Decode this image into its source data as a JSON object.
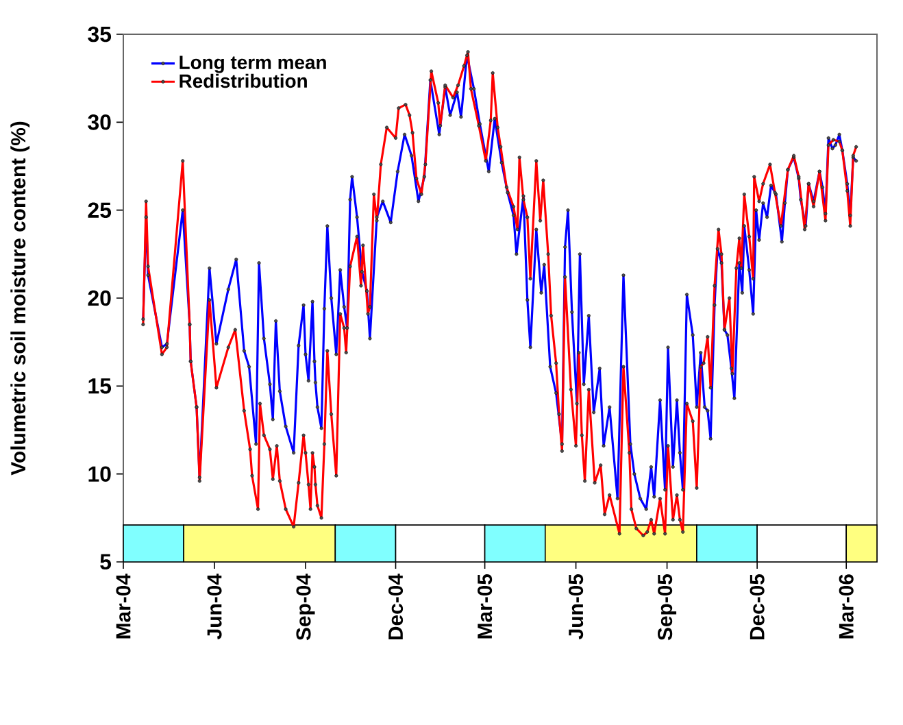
{
  "chart_data": {
    "type": "line",
    "ylabel": "Volumetric soil moisture content (%)",
    "xlim": [
      "2004-03-01",
      "2006-04-01"
    ],
    "xticks": [
      {
        "value": "2004-03-01",
        "label": "Mar-04"
      },
      {
        "value": "2004-06-01",
        "label": "Jun-04"
      },
      {
        "value": "2004-09-01",
        "label": "Sep-04"
      },
      {
        "value": "2004-12-01",
        "label": "Dec-04"
      },
      {
        "value": "2005-03-01",
        "label": "Mar-05"
      },
      {
        "value": "2005-06-01",
        "label": "Jun-05"
      },
      {
        "value": "2005-09-01",
        "label": "Sep-05"
      },
      {
        "value": "2005-12-01",
        "label": "Dec-05"
      },
      {
        "value": "2006-03-01",
        "label": "Mar-06"
      }
    ],
    "ylim": [
      5,
      35
    ],
    "yticks": [
      5,
      10,
      15,
      20,
      25,
      30,
      35
    ],
    "legend": "top left",
    "marker": "circle",
    "line_style": "solid",
    "bands": [
      {
        "axis": "x",
        "from": "2004-03-01",
        "to": "2004-05-01",
        "color": "#80ffff"
      },
      {
        "axis": "x",
        "from": "2004-05-01",
        "to": "2004-10-01",
        "color": "#ffff80"
      },
      {
        "axis": "x",
        "from": "2004-10-01",
        "to": "2004-12-01",
        "color": "#80ffff"
      },
      {
        "axis": "x",
        "from": "2004-12-01",
        "to": "2005-03-01",
        "color": "#ffffff"
      },
      {
        "axis": "x",
        "from": "2005-03-01",
        "to": "2005-05-01",
        "color": "#80ffff"
      },
      {
        "axis": "x",
        "from": "2005-05-01",
        "to": "2005-10-01",
        "color": "#ffff80"
      },
      {
        "axis": "x",
        "from": "2005-10-01",
        "to": "2005-12-01",
        "color": "#80ffff"
      },
      {
        "axis": "x",
        "from": "2005-12-01",
        "to": "2006-03-01",
        "color": "#ffffff"
      },
      {
        "axis": "x",
        "from": "2006-03-01",
        "to": "2006-04-01",
        "color": "#ffff80"
      }
    ],
    "series": [
      {
        "name": "Long term mean",
        "color": "#0000ff",
        "x": [
          "2004-03-21",
          "2004-03-24",
          "2004-03-26",
          "2004-04-09",
          "2004-04-14",
          "2004-04-30",
          "2004-05-07",
          "2004-05-08",
          "2004-05-14",
          "2004-05-17",
          "2004-05-27",
          "2004-06-03",
          "2004-06-15",
          "2004-06-23",
          "2004-07-01",
          "2004-07-06",
          "2004-07-13",
          "2004-07-16",
          "2004-07-21",
          "2004-07-27",
          "2004-07-30",
          "2004-08-02",
          "2004-08-06",
          "2004-08-12",
          "2004-08-20",
          "2004-08-25",
          "2004-08-30",
          "2004-09-01",
          "2004-09-04",
          "2004-09-08",
          "2004-09-10",
          "2004-09-11",
          "2004-09-13",
          "2004-09-17",
          "2004-09-20",
          "2004-09-23",
          "2004-09-27",
          "2004-10-02",
          "2004-10-06",
          "2004-10-10",
          "2004-10-13",
          "2004-10-16",
          "2004-10-18",
          "2004-10-23",
          "2004-10-28",
          "2004-11-02",
          "2004-11-05",
          "2004-11-12",
          "2004-11-18",
          "2004-11-26",
          "2004-12-03",
          "2004-12-10",
          "2004-12-17",
          "2004-12-24",
          "2004-12-30",
          "2005-01-05",
          "2005-01-14",
          "2005-01-20",
          "2005-01-25",
          "2005-02-01",
          "2005-02-05",
          "2005-02-11",
          "2005-02-18",
          "2005-02-24",
          "2005-03-05",
          "2005-03-11",
          "2005-03-18",
          "2005-03-24",
          "2005-03-30",
          "2005-04-02",
          "2005-04-09",
          "2005-04-13",
          "2005-04-16",
          "2005-04-22",
          "2005-04-27",
          "2005-04-30",
          "2005-05-06",
          "2005-05-12",
          "2005-05-18",
          "2005-05-21",
          "2005-05-24",
          "2005-05-28",
          "2005-06-02",
          "2005-06-05",
          "2005-06-09",
          "2005-06-14",
          "2005-06-19",
          "2005-06-25",
          "2005-06-29",
          "2005-07-05",
          "2005-07-13",
          "2005-07-19",
          "2005-07-26",
          "2005-07-30",
          "2005-08-05",
          "2005-08-11",
          "2005-08-16",
          "2005-08-19",
          "2005-08-25",
          "2005-08-30",
          "2005-09-02",
          "2005-09-07",
          "2005-09-11",
          "2005-09-14",
          "2005-09-17",
          "2005-09-21",
          "2005-09-27",
          "2005-10-01",
          "2005-10-05",
          "2005-10-09",
          "2005-10-12",
          "2005-10-15",
          "2005-10-19",
          "2005-10-22",
          "2005-10-26",
          "2005-10-29",
          "2005-11-01",
          "2005-11-05",
          "2005-11-08",
          "2005-11-13",
          "2005-11-16",
          "2005-11-18",
          "2005-11-23",
          "2005-11-27",
          "2005-11-30",
          "2005-12-03",
          "2005-12-07",
          "2005-12-11",
          "2005-12-15",
          "2005-12-20",
          "2005-12-26",
          "2005-12-29",
          "2006-01-01",
          "2006-01-07",
          "2006-01-12",
          "2006-01-14",
          "2006-01-19",
          "2006-01-22",
          "2006-01-27",
          "2006-02-02",
          "2006-02-05",
          "2006-02-08",
          "2006-02-11",
          "2006-02-15",
          "2006-02-18",
          "2006-02-22",
          "2006-02-25",
          "2006-03-02",
          "2006-03-05",
          "2006-03-08",
          "2006-03-11"
        ],
        "values": [
          18.8,
          24.6,
          21.3,
          17.2,
          17.4,
          25.0,
          18.5,
          16.4,
          13.8,
          9.8,
          21.7,
          17.4,
          20.5,
          22.2,
          17.0,
          16.1,
          11.7,
          22.0,
          17.7,
          15.1,
          13.1,
          18.7,
          14.7,
          12.7,
          11.2,
          17.3,
          19.6,
          16.8,
          15.3,
          19.8,
          16.4,
          15.2,
          13.8,
          12.6,
          19.4,
          24.1,
          20.0,
          16.8,
          21.6,
          19.5,
          18.3,
          25.6,
          26.9,
          24.6,
          21.5,
          20.4,
          17.7,
          24.6,
          25.5,
          24.3,
          27.2,
          29.3,
          28.1,
          25.5,
          26.9,
          32.4,
          29.3,
          32.0,
          30.4,
          31.7,
          30.3,
          33.8,
          31.9,
          29.9,
          27.2,
          30.2,
          27.7,
          26.0,
          24.7,
          22.5,
          25.8,
          19.9,
          17.2,
          23.9,
          20.3,
          21.9,
          16.1,
          14.6,
          11.7,
          22.9,
          25.0,
          19.2,
          14.0,
          22.5,
          15.1,
          19.0,
          13.5,
          16.0,
          11.6,
          13.8,
          8.6,
          21.3,
          11.7,
          10.0,
          8.6,
          8.0,
          10.4,
          8.7,
          14.2,
          9.1,
          17.2,
          10.4,
          14.2,
          11.2,
          9.1,
          20.2,
          17.9,
          13.8,
          16.9,
          13.8,
          13.6,
          12.0,
          19.6,
          22.8,
          22.0,
          18.2,
          17.9,
          16.0,
          14.3,
          22.0,
          20.3,
          24.1,
          21.6,
          19.1,
          25.0,
          23.3,
          25.4,
          24.6,
          26.4,
          25.9,
          23.2,
          25.4,
          27.3,
          28.0,
          26.8,
          25.6,
          24.1,
          26.5,
          25.5,
          27.2,
          26.3,
          24.8,
          29.1,
          28.5,
          28.7,
          29.3,
          28.4,
          26.5,
          24.7,
          28.0,
          27.8
        ]
      },
      {
        "name": "Redistribution",
        "color": "#ff0000",
        "x": [
          "2004-03-21",
          "2004-03-24",
          "2004-03-26",
          "2004-04-09",
          "2004-04-14",
          "2004-04-30",
          "2004-05-07",
          "2004-05-08",
          "2004-05-14",
          "2004-05-17",
          "2004-05-27",
          "2004-06-03",
          "2004-06-15",
          "2004-06-22",
          "2004-07-01",
          "2004-07-07",
          "2004-07-09",
          "2004-07-15",
          "2004-07-17",
          "2004-07-21",
          "2004-07-27",
          "2004-07-30",
          "2004-08-03",
          "2004-08-06",
          "2004-08-12",
          "2004-08-20",
          "2004-08-25",
          "2004-08-30",
          "2004-09-01",
          "2004-09-04",
          "2004-09-06",
          "2004-09-08",
          "2004-09-10",
          "2004-09-11",
          "2004-09-13",
          "2004-09-17",
          "2004-09-20",
          "2004-09-23",
          "2004-09-27",
          "2004-10-02",
          "2004-10-06",
          "2004-10-10",
          "2004-10-12",
          "2004-10-16",
          "2004-10-23",
          "2004-10-27",
          "2004-10-29",
          "2004-11-03",
          "2004-11-05",
          "2004-11-09",
          "2004-11-12",
          "2004-11-16",
          "2004-11-22",
          "2004-12-01",
          "2004-12-04",
          "2004-12-11",
          "2004-12-15",
          "2004-12-18",
          "2004-12-22",
          "2004-12-27",
          "2004-12-31",
          "2005-01-06",
          "2005-01-13",
          "2005-01-15",
          "2005-01-20",
          "2005-01-28",
          "2005-02-02",
          "2005-02-08",
          "2005-02-12",
          "2005-02-15",
          "2005-02-23",
          "2005-03-02",
          "2005-03-07",
          "2005-03-09",
          "2005-03-14",
          "2005-03-17",
          "2005-03-23",
          "2005-03-30",
          "2005-04-03",
          "2005-04-05",
          "2005-04-09",
          "2005-04-13",
          "2005-04-16",
          "2005-04-22",
          "2005-04-26",
          "2005-04-29",
          "2005-05-04",
          "2005-05-07",
          "2005-05-12",
          "2005-05-15",
          "2005-05-18",
          "2005-05-21",
          "2005-05-27",
          "2005-06-01",
          "2005-06-04",
          "2005-06-07",
          "2005-06-10",
          "2005-06-14",
          "2005-06-20",
          "2005-06-26",
          "2005-06-30",
          "2005-07-05",
          "2005-07-15",
          "2005-07-19",
          "2005-07-25",
          "2005-07-27",
          "2005-08-01",
          "2005-08-08",
          "2005-08-12",
          "2005-08-16",
          "2005-08-19",
          "2005-08-25",
          "2005-08-30",
          "2005-09-02",
          "2005-09-07",
          "2005-09-11",
          "2005-09-14",
          "2005-09-17",
          "2005-09-21",
          "2005-09-27",
          "2005-10-01",
          "2005-10-05",
          "2005-10-08",
          "2005-10-12",
          "2005-10-15",
          "2005-10-19",
          "2005-10-23",
          "2005-10-26",
          "2005-10-29",
          "2005-11-03",
          "2005-11-06",
          "2005-11-10",
          "2005-11-13",
          "2005-11-15",
          "2005-11-18",
          "2005-11-23",
          "2005-11-27",
          "2005-11-28",
          "2005-12-03",
          "2005-12-07",
          "2005-12-14",
          "2005-12-19",
          "2005-12-25",
          "2006-01-01",
          "2006-01-07",
          "2006-01-12",
          "2006-01-18",
          "2006-01-22",
          "2006-01-27",
          "2006-02-02",
          "2006-02-08",
          "2006-02-11",
          "2006-02-16",
          "2006-02-22",
          "2006-02-25",
          "2006-03-02",
          "2006-03-05",
          "2006-03-08",
          "2006-03-11"
        ],
        "values": [
          18.5,
          25.5,
          21.8,
          16.8,
          17.2,
          27.8,
          18.5,
          16.4,
          13.8,
          9.6,
          19.9,
          14.9,
          17.2,
          18.2,
          13.6,
          11.4,
          9.9,
          8.0,
          14.0,
          12.2,
          11.4,
          9.7,
          11.6,
          9.6,
          8.0,
          7.0,
          9.5,
          12.2,
          11.2,
          9.4,
          8.0,
          11.2,
          10.4,
          9.4,
          8.2,
          7.5,
          11.7,
          17.0,
          13.4,
          9.9,
          19.1,
          18.3,
          16.9,
          21.8,
          23.5,
          20.7,
          23.0,
          19.1,
          19.5,
          25.9,
          24.4,
          27.6,
          29.7,
          29.1,
          30.8,
          31.0,
          30.4,
          29.4,
          26.8,
          25.9,
          27.6,
          32.9,
          31.1,
          29.8,
          32.1,
          31.4,
          32.1,
          33.2,
          34.0,
          31.9,
          29.8,
          27.8,
          30.1,
          32.8,
          29.7,
          28.6,
          26.3,
          25.2,
          23.9,
          28.0,
          25.6,
          24.6,
          21.1,
          27.8,
          24.4,
          26.7,
          22.5,
          19.0,
          16.3,
          13.4,
          11.3,
          21.2,
          14.8,
          11.6,
          16.9,
          12.2,
          9.6,
          14.8,
          9.5,
          10.5,
          7.7,
          8.8,
          6.6,
          16.1,
          11.2,
          8.0,
          6.9,
          6.5,
          6.7,
          7.4,
          6.6,
          8.6,
          6.6,
          11.6,
          7.4,
          8.8,
          7.4,
          6.7,
          14.0,
          13.0,
          9.2,
          16.1,
          16.3,
          17.8,
          14.9,
          20.7,
          23.9,
          22.5,
          18.2,
          20.0,
          15.7,
          21.7,
          23.4,
          21.7,
          25.9,
          23.5,
          21.1,
          26.9,
          25.5,
          26.5,
          27.6,
          26.0,
          24.1,
          27.3,
          28.1,
          26.9,
          23.9,
          26.5,
          25.2,
          27.2,
          24.4,
          28.7,
          29.0,
          28.9,
          28.4,
          26.1,
          24.1,
          28.1,
          28.6
        ]
      }
    ]
  }
}
